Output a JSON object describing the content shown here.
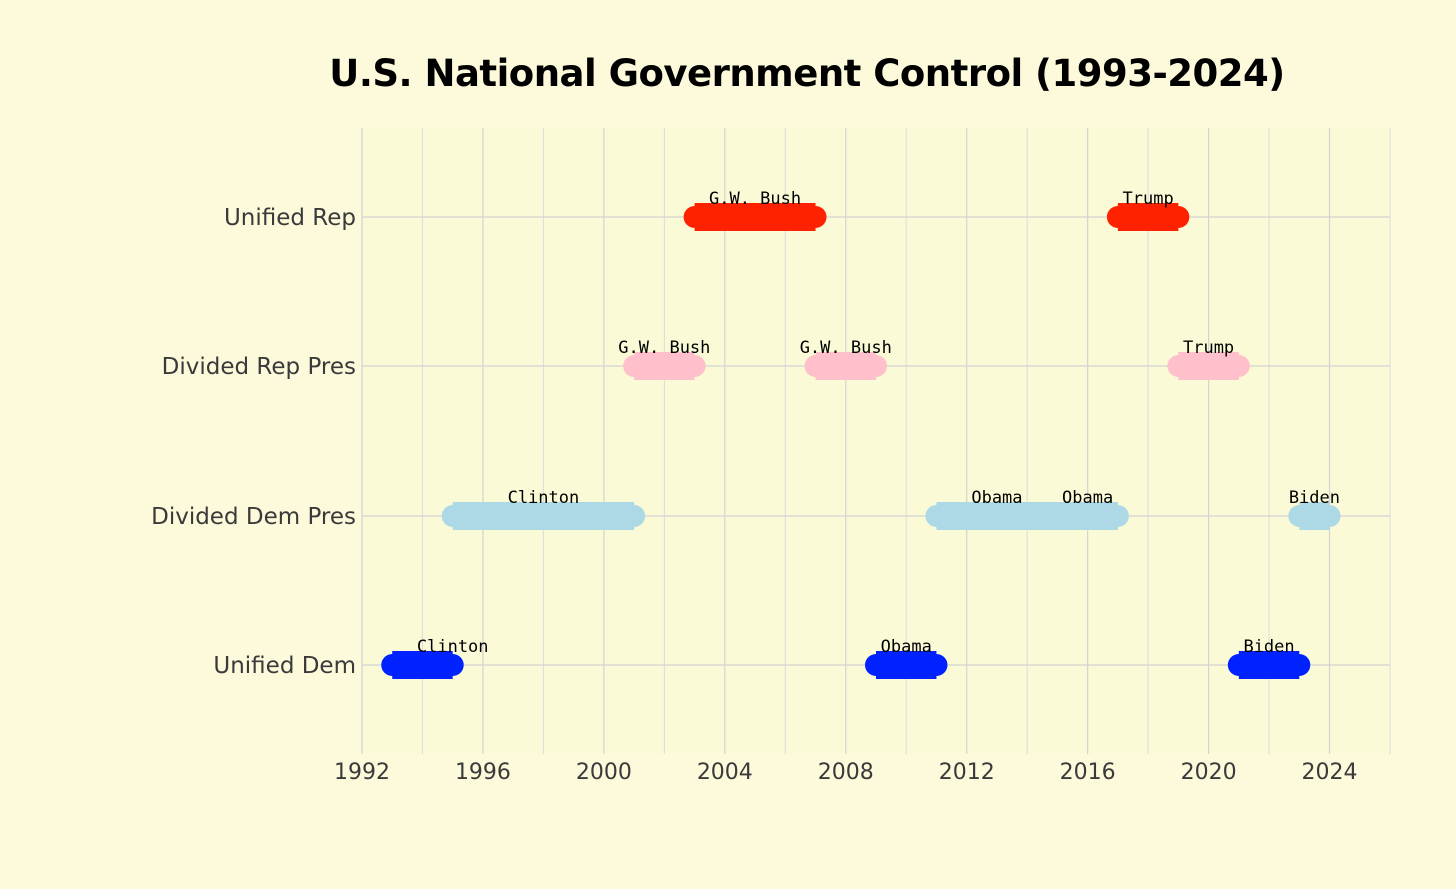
{
  "chart_data": {
    "type": "bar",
    "orientation": "horizontal-ranges",
    "title": "U.S. National Government Control (1993-2024)",
    "xlabel": "",
    "ylabel": "",
    "xlim": [
      1992,
      2026
    ],
    "x_ticks": [
      1992,
      1996,
      2000,
      2004,
      2008,
      2012,
      2016,
      2020,
      2024
    ],
    "grid": true,
    "legend": "none",
    "categories": [
      "Unified Rep",
      "Divided Rep Pres",
      "Divided Dem Pres",
      "Unified Dem"
    ],
    "colors": {
      "Unified Rep": "#ff2200",
      "Divided Rep Pres": "#ffc0cb",
      "Divided Dem Pres": "#add8e6",
      "Unified Dem": "#0022ff"
    },
    "segments": [
      {
        "category": "Unified Dem",
        "start": 1993,
        "end": 1995,
        "label": "Clinton",
        "label_at": 1995
      },
      {
        "category": "Divided Dem Pres",
        "start": 1995,
        "end": 2001,
        "label": "Clinton",
        "label_at": 1998
      },
      {
        "category": "Divided Rep Pres",
        "start": 2001,
        "end": 2003,
        "label": "G.W. Bush",
        "label_at": 2002
      },
      {
        "category": "Unified Rep",
        "start": 2003,
        "end": 2007,
        "label": "G.W. Bush",
        "label_at": 2005
      },
      {
        "category": "Divided Rep Pres",
        "start": 2007,
        "end": 2009,
        "label": "G.W. Bush",
        "label_at": 2008
      },
      {
        "category": "Unified Dem",
        "start": 2009,
        "end": 2011,
        "label": "Obama",
        "label_at": 2010
      },
      {
        "category": "Divided Dem Pres",
        "start": 2011,
        "end": 2017,
        "label": "Obama",
        "label_at": 2013
      },
      {
        "category": "Divided Dem Pres",
        "start": 2011,
        "end": 2017,
        "label": "Obama",
        "label_at": 2016
      },
      {
        "category": "Unified Rep",
        "start": 2017,
        "end": 2019,
        "label": "Trump",
        "label_at": 2018
      },
      {
        "category": "Divided Rep Pres",
        "start": 2019,
        "end": 2021,
        "label": "Trump",
        "label_at": 2020
      },
      {
        "category": "Unified Dem",
        "start": 2021,
        "end": 2023,
        "label": "Biden",
        "label_at": 2022
      },
      {
        "category": "Divided Dem Pres",
        "start": 2023,
        "end": 2024,
        "label": "Biden",
        "label_at": 2023.5
      }
    ]
  }
}
